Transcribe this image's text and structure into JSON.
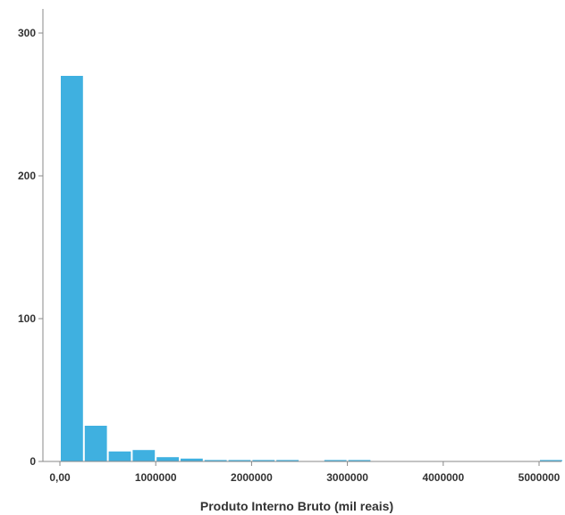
{
  "chart_data": {
    "type": "bar",
    "subtype": "histogram",
    "title": "",
    "xlabel": "Produto Interno Bruto (mil reais)",
    "ylabel": "",
    "bin_width": 250000,
    "bins": [
      {
        "start": 0,
        "end": 250000,
        "count": 270
      },
      {
        "start": 250000,
        "end": 500000,
        "count": 25
      },
      {
        "start": 500000,
        "end": 750000,
        "count": 7
      },
      {
        "start": 750000,
        "end": 1000000,
        "count": 8
      },
      {
        "start": 1000000,
        "end": 1250000,
        "count": 3
      },
      {
        "start": 1250000,
        "end": 1500000,
        "count": 2
      },
      {
        "start": 1500000,
        "end": 1750000,
        "count": 1
      },
      {
        "start": 1750000,
        "end": 2000000,
        "count": 1
      },
      {
        "start": 2000000,
        "end": 2250000,
        "count": 1
      },
      {
        "start": 2250000,
        "end": 2500000,
        "count": 1
      },
      {
        "start": 2500000,
        "end": 2750000,
        "count": 0
      },
      {
        "start": 2750000,
        "end": 3000000,
        "count": 1
      },
      {
        "start": 3000000,
        "end": 3250000,
        "count": 1
      },
      {
        "start": 3250000,
        "end": 3500000,
        "count": 0
      },
      {
        "start": 3500000,
        "end": 3750000,
        "count": 0
      },
      {
        "start": 3750000,
        "end": 4000000,
        "count": 0
      },
      {
        "start": 4000000,
        "end": 4250000,
        "count": 0
      },
      {
        "start": 4250000,
        "end": 4500000,
        "count": 0
      },
      {
        "start": 4500000,
        "end": 4750000,
        "count": 0
      },
      {
        "start": 4750000,
        "end": 5000000,
        "count": 0
      },
      {
        "start": 5000000,
        "end": 5250000,
        "count": 1
      }
    ],
    "xlim": [
      -50000,
      5250000
    ],
    "ylim": [
      0,
      320
    ],
    "x_ticks": [
      {
        "value": 0,
        "label": "0,00"
      },
      {
        "value": 1000000,
        "label": "1000000"
      },
      {
        "value": 2000000,
        "label": "2000000"
      },
      {
        "value": 3000000,
        "label": "3000000"
      },
      {
        "value": 4000000,
        "label": "4000000"
      },
      {
        "value": 5000000,
        "label": "5000000"
      }
    ],
    "y_ticks": [
      {
        "value": 0,
        "label": "0"
      },
      {
        "value": 100,
        "label": "100"
      },
      {
        "value": 200,
        "label": "200"
      },
      {
        "value": 300,
        "label": "300"
      }
    ],
    "bar_color": "#3FB0E0",
    "grid": false
  }
}
